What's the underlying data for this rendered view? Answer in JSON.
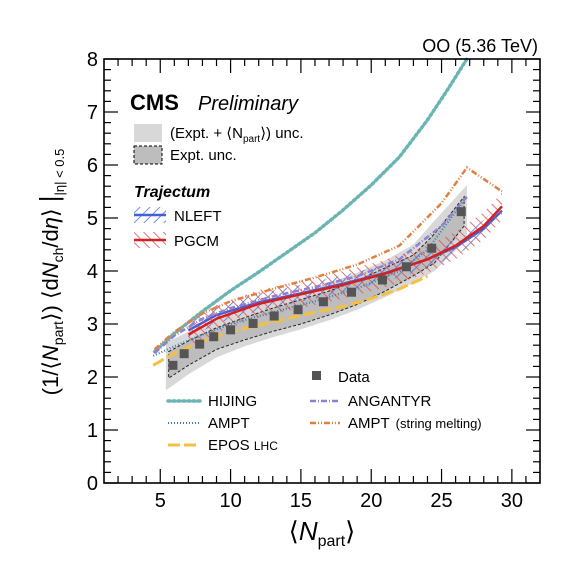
{
  "chart_data": {
    "type": "scatter",
    "energy_label": "OO (5.36 TeV)",
    "experiment": "CMS",
    "experiment_status": "Preliminary",
    "xlabel": "⟨N_part⟩",
    "ylabel": "(1/⟨N_part⟩) ⟨dN_ch/dη⟩",
    "ylabel_subscript": "|η| < 0.5",
    "xlim": [
      1,
      32
    ],
    "ylim": [
      0,
      8
    ],
    "x_ticks": [
      5,
      10,
      15,
      20,
      25,
      30
    ],
    "y_ticks": [
      0,
      1,
      2,
      3,
      4,
      5,
      6,
      7,
      8
    ],
    "legend": {
      "band_total_label": "(Expt. + ⟨N_part⟩) unc.",
      "band_expt_label": "Expt. unc.",
      "trajectum_title": "Trajectum",
      "nleft_label": "NLEFT",
      "pgcm_label": "PGCM",
      "data_label": "Data",
      "hijing_label": "HIJING",
      "ampt_label": "AMPT",
      "epos_label": "EPOS LHC",
      "angantyr_label": "ANGANTYR",
      "ampt_sm_label": "AMPT (string melting)"
    },
    "colors": {
      "data": "#555555",
      "total_band": "#d8d8d8",
      "expt_band": "#bdbdbd",
      "nleft": "#4060d8",
      "pgcm": "#d42020",
      "hijing": "#6ab4b4",
      "ampt": "#3a80b0",
      "epos": "#f5c040",
      "angantyr": "#9080d0",
      "ampt_sm": "#e08040"
    },
    "data_points": {
      "x": [
        5.9,
        6.7,
        7.8,
        8.8,
        10.0,
        11.6,
        13.1,
        14.8,
        16.6,
        18.6,
        20.8,
        22.5,
        24.3,
        26.4
      ],
      "y": [
        2.22,
        2.44,
        2.62,
        2.76,
        2.89,
        3.01,
        3.15,
        3.27,
        3.42,
        3.6,
        3.83,
        4.08,
        4.43,
        5.12
      ]
    },
    "expt_band": {
      "x": [
        5.6,
        7,
        9,
        11,
        13,
        15,
        17,
        19,
        21,
        23,
        24.5,
        26.6
      ],
      "low": [
        1.98,
        2.22,
        2.52,
        2.7,
        2.86,
        3.0,
        3.17,
        3.37,
        3.62,
        3.91,
        4.15,
        4.85
      ],
      "high": [
        2.48,
        2.68,
        2.93,
        3.12,
        3.3,
        3.46,
        3.62,
        3.82,
        4.06,
        4.3,
        4.7,
        5.4
      ]
    },
    "total_band": {
      "x": [
        5.4,
        7,
        9,
        11,
        13,
        15,
        17,
        19,
        21,
        23,
        24.5,
        26.8
      ],
      "low": [
        1.75,
        2.05,
        2.37,
        2.58,
        2.75,
        2.9,
        3.07,
        3.27,
        3.51,
        3.78,
        4.0,
        4.6
      ],
      "high": [
        2.65,
        2.85,
        3.08,
        3.26,
        3.44,
        3.6,
        3.77,
        3.97,
        4.2,
        4.5,
        4.95,
        5.62
      ]
    },
    "series": [
      {
        "name": "NLEFT",
        "style": "band",
        "x": [
          7,
          9,
          12,
          15,
          18,
          21,
          24,
          26,
          28,
          29.3
        ],
        "y": [
          2.88,
          3.17,
          3.41,
          3.58,
          3.76,
          3.96,
          4.22,
          4.45,
          4.8,
          5.14
        ],
        "half_width": 0.16
      },
      {
        "name": "PGCM",
        "style": "band",
        "x": [
          7,
          9,
          12,
          15,
          18,
          21,
          24,
          26,
          28,
          29.3
        ],
        "y": [
          2.8,
          3.1,
          3.38,
          3.56,
          3.74,
          3.95,
          4.22,
          4.48,
          4.85,
          5.22
        ],
        "half_width": 0.26
      },
      {
        "name": "HIJING",
        "style": "dotted",
        "x": [
          4.6,
          6,
          8,
          10,
          12,
          14,
          16,
          18,
          20,
          22,
          24,
          25.5,
          26.8
        ],
        "y": [
          2.48,
          2.82,
          3.24,
          3.63,
          3.98,
          4.35,
          4.72,
          5.15,
          5.62,
          6.15,
          6.85,
          7.45,
          8.0
        ]
      },
      {
        "name": "AMPT",
        "style": "fine-dotted",
        "x": [
          4.5,
          6,
          8,
          10,
          13,
          16,
          19,
          22,
          24,
          26.5
        ],
        "y": [
          2.4,
          2.58,
          2.8,
          3.0,
          3.22,
          3.43,
          3.67,
          4.0,
          4.4,
          5.3
        ]
      },
      {
        "name": "EPOS LHC",
        "style": "long-dash",
        "x": [
          4.5,
          6,
          8,
          10,
          12,
          14,
          16,
          18,
          20,
          22,
          24
        ],
        "y": [
          2.22,
          2.45,
          2.68,
          2.85,
          2.98,
          3.1,
          3.22,
          3.33,
          3.48,
          3.66,
          3.9
        ]
      },
      {
        "name": "ANGANTYR",
        "style": "dash-dot",
        "x": [
          4.6,
          6,
          8,
          10,
          13,
          16,
          19,
          22,
          25,
          26.8
        ],
        "y": [
          2.45,
          2.78,
          3.1,
          3.3,
          3.52,
          3.7,
          3.9,
          4.22,
          4.85,
          5.4
        ]
      },
      {
        "name": "AMPT (string melting)",
        "style": "dash-dot-dot",
        "x": [
          4.6,
          6,
          8,
          10,
          13,
          16,
          19,
          22,
          25,
          26.8,
          29.3
        ],
        "y": [
          2.52,
          2.85,
          3.2,
          3.43,
          3.66,
          3.88,
          4.12,
          4.48,
          5.28,
          5.95,
          5.5
        ]
      }
    ]
  }
}
